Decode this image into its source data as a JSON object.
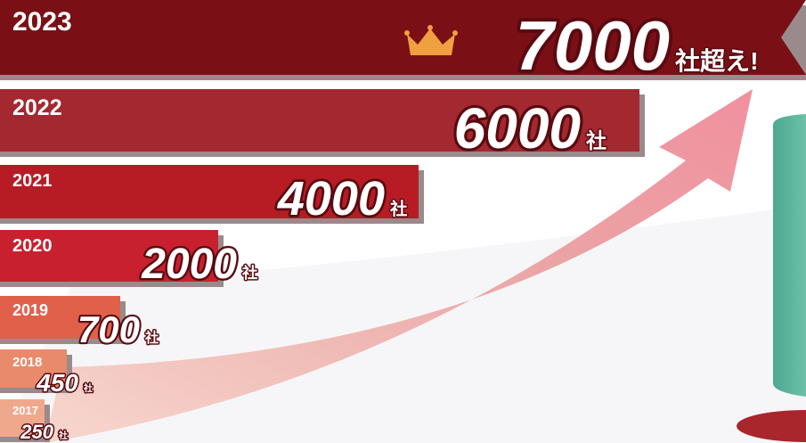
{
  "rows": [
    {
      "year": "2023",
      "count": "7000",
      "unit": "社超え!"
    },
    {
      "year": "2022",
      "count": "6000",
      "unit": "社"
    },
    {
      "year": "2021",
      "count": "4000",
      "unit": "社"
    },
    {
      "year": "2020",
      "count": "2000",
      "unit": "社"
    },
    {
      "year": "2019",
      "count": "700",
      "unit": "社"
    },
    {
      "year": "2018",
      "count": "450",
      "unit": "社"
    },
    {
      "year": "2017",
      "count": "250",
      "unit": "社"
    }
  ]
}
